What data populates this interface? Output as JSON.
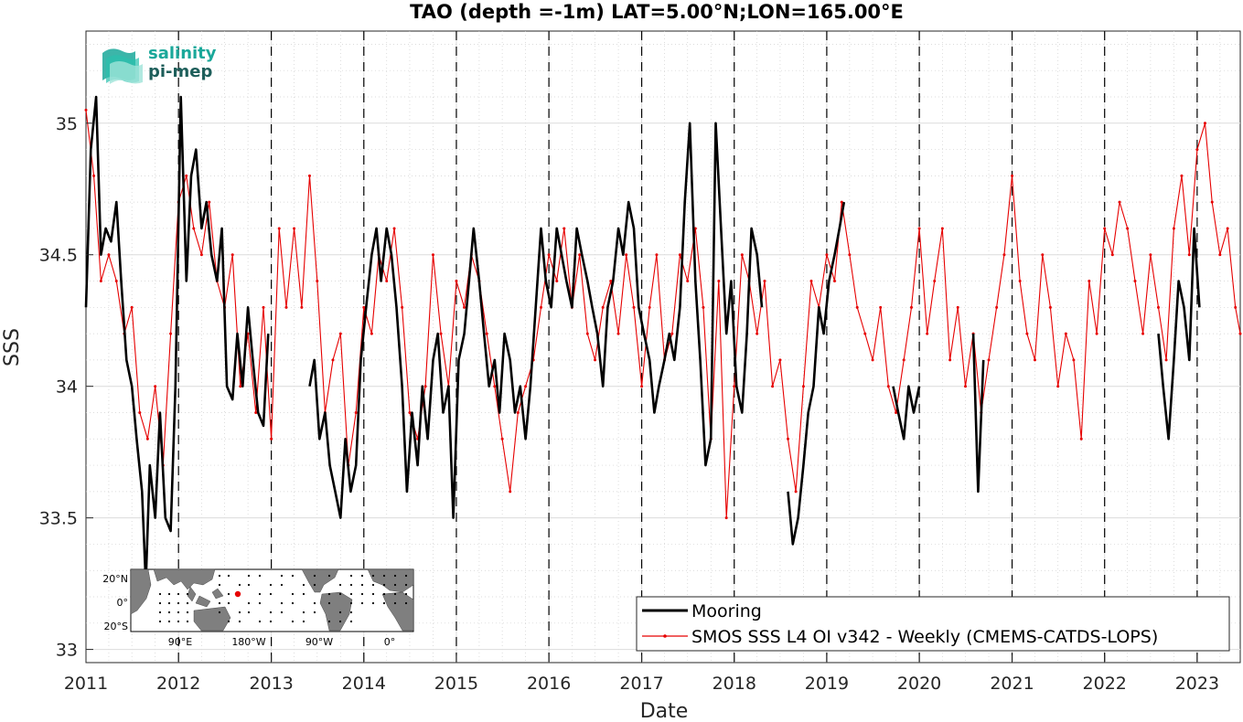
{
  "chart_data": {
    "type": "line",
    "title": "TAO (depth =-1m) LAT=5.00°N;LON=165.00°E",
    "xlabel": "Date",
    "ylabel": "SSS",
    "xlim": [
      "2011-01-01",
      "2023-06-20"
    ],
    "ylim": [
      32.95,
      35.35
    ],
    "x_ticks": [
      "2011",
      "2012",
      "2013",
      "2014",
      "2015",
      "2016",
      "2017",
      "2018",
      "2019",
      "2020",
      "2021",
      "2022",
      "2023"
    ],
    "y_ticks": [
      33,
      33.5,
      34,
      34.5,
      35
    ],
    "grid": true,
    "minor_grid": true,
    "year_dashed_lines": true,
    "legend_position": "bottom-right",
    "series": [
      {
        "name": "Mooring",
        "color": "#000000",
        "style": "thick-line",
        "segments": [
          {
            "x": [
              "2011-01-01",
              "2011-01-20",
              "2011-02-10",
              "2011-03-01",
              "2011-03-20",
              "2011-04-10",
              "2011-05-01",
              "2011-05-20",
              "2011-06-10",
              "2011-07-01",
              "2011-07-20",
              "2011-08-10",
              "2011-08-25",
              "2011-09-10",
              "2011-10-01",
              "2011-10-20",
              "2011-11-10",
              "2011-12-01",
              "2011-12-20",
              "2012-01-10",
              "2012-02-01",
              "2012-02-20",
              "2012-03-10",
              "2012-04-01",
              "2012-04-20",
              "2012-05-10",
              "2012-06-01",
              "2012-06-20",
              "2012-07-10",
              "2012-08-01",
              "2012-08-20",
              "2012-09-10",
              "2012-10-01",
              "2012-10-20",
              "2012-11-10",
              "2012-12-01",
              "2012-12-20"
            ],
            "y": [
              34.3,
              34.9,
              35.1,
              34.5,
              34.6,
              34.55,
              34.7,
              34.4,
              34.1,
              34.0,
              33.8,
              33.6,
              33.25,
              33.7,
              33.5,
              33.9,
              33.5,
              33.45,
              34.0,
              35.1,
              34.4,
              34.8,
              34.9,
              34.6,
              34.7,
              34.5,
              34.4,
              34.6,
              34.0,
              33.95,
              34.2,
              34.0,
              34.3,
              34.1,
              33.9,
              33.85,
              34.2
            ]
          },
          {
            "x": [
              "2013-06-01",
              "2013-06-20",
              "2013-07-10",
              "2013-08-01",
              "2013-08-20",
              "2013-09-10",
              "2013-10-01",
              "2013-10-20",
              "2013-11-10",
              "2013-12-01",
              "2013-12-20",
              "2014-01-10",
              "2014-02-01",
              "2014-02-20",
              "2014-03-10",
              "2014-04-01",
              "2014-04-20",
              "2014-05-10",
              "2014-06-01",
              "2014-06-20",
              "2014-07-10",
              "2014-08-01",
              "2014-08-20",
              "2014-09-10",
              "2014-10-01",
              "2014-10-20",
              "2014-11-10",
              "2014-12-01",
              "2014-12-20",
              "2015-01-10",
              "2015-02-01",
              "2015-02-20",
              "2015-03-10",
              "2015-04-01",
              "2015-04-20",
              "2015-05-10",
              "2015-06-01",
              "2015-06-20",
              "2015-07-10",
              "2015-08-01",
              "2015-08-20",
              "2015-09-10",
              "2015-10-01",
              "2015-10-20",
              "2015-11-10",
              "2015-12-01",
              "2015-12-20",
              "2016-01-10",
              "2016-02-01",
              "2016-02-20",
              "2016-03-10",
              "2016-04-01",
              "2016-04-20",
              "2016-05-10",
              "2016-06-01",
              "2016-06-20",
              "2016-07-10",
              "2016-08-01",
              "2016-08-20",
              "2016-09-10",
              "2016-10-01",
              "2016-10-20",
              "2016-11-10",
              "2016-12-01",
              "2016-12-20",
              "2017-01-10",
              "2017-02-01",
              "2017-02-20",
              "2017-03-10",
              "2017-04-01",
              "2017-04-20",
              "2017-05-10",
              "2017-06-01",
              "2017-06-20",
              "2017-07-10",
              "2017-08-01",
              "2017-08-20",
              "2017-09-10",
              "2017-10-01",
              "2017-10-20",
              "2017-11-10",
              "2017-12-01",
              "2017-12-20",
              "2018-01-10",
              "2018-02-01",
              "2018-02-20",
              "2018-03-10",
              "2018-04-01",
              "2018-04-20"
            ],
            "y": [
              34.0,
              34.1,
              33.8,
              33.9,
              33.7,
              33.6,
              33.5,
              33.8,
              33.6,
              33.7,
              34.1,
              34.3,
              34.5,
              34.6,
              34.4,
              34.6,
              34.5,
              34.3,
              34.0,
              33.6,
              33.9,
              33.7,
              34.0,
              33.8,
              34.1,
              34.2,
              33.9,
              34.0,
              33.5,
              34.1,
              34.2,
              34.4,
              34.6,
              34.4,
              34.2,
              34.0,
              34.1,
              33.9,
              34.2,
              34.1,
              33.9,
              34.0,
              33.8,
              34.0,
              34.3,
              34.6,
              34.4,
              34.3,
              34.6,
              34.5,
              34.4,
              34.3,
              34.6,
              34.5,
              34.4,
              34.3,
              34.2,
              34.0,
              34.3,
              34.4,
              34.6,
              34.5,
              34.7,
              34.6,
              34.3,
              34.2,
              34.1,
              33.9,
              34.0,
              34.1,
              34.2,
              34.1,
              34.3,
              34.7,
              35.0,
              34.4,
              34.1,
              33.7,
              33.8,
              35.0,
              34.6,
              34.2,
              34.4,
              34.0,
              33.9,
              34.2,
              34.6,
              34.5,
              34.3
            ]
          },
          {
            "x": [
              "2018-08-01",
              "2018-08-20",
              "2018-09-10",
              "2018-10-01",
              "2018-10-20",
              "2018-11-10",
              "2018-12-01",
              "2018-12-20",
              "2019-01-10",
              "2019-02-01",
              "2019-02-20",
              "2019-03-10"
            ],
            "y": [
              33.6,
              33.4,
              33.5,
              33.7,
              33.9,
              34.0,
              34.3,
              34.2,
              34.4,
              34.5,
              34.6,
              34.7
            ]
          },
          {
            "x": [
              "2019-09-20",
              "2019-10-10",
              "2019-11-01",
              "2019-11-20",
              "2019-12-10",
              "2020-01-01"
            ],
            "y": [
              34.0,
              33.9,
              33.8,
              34.0,
              33.9,
              34.0
            ]
          },
          {
            "x": [
              "2020-08-01",
              "2020-08-20",
              "2020-09-10"
            ],
            "y": [
              34.2,
              33.6,
              34.1
            ]
          },
          {
            "x": [
              "2022-08-01",
              "2022-08-20",
              "2022-09-10",
              "2022-10-01",
              "2022-10-20",
              "2022-11-10",
              "2022-12-01",
              "2022-12-20",
              "2023-01-10"
            ],
            "y": [
              34.2,
              34.0,
              33.8,
              34.1,
              34.4,
              34.3,
              34.1,
              34.6,
              34.3
            ]
          }
        ]
      },
      {
        "name": "SMOS SSS L4 OI v342 - Weekly (CMEMS-CATDS-LOPS)",
        "color": "#e60000",
        "style": "line-with-dots",
        "x": [
          "2011-01-01",
          "2011-02-01",
          "2011-03-01",
          "2011-04-01",
          "2011-05-01",
          "2011-06-01",
          "2011-07-01",
          "2011-08-01",
          "2011-09-01",
          "2011-10-01",
          "2011-11-01",
          "2011-12-01",
          "2012-01-01",
          "2012-02-01",
          "2012-03-01",
          "2012-04-01",
          "2012-05-01",
          "2012-06-01",
          "2012-07-01",
          "2012-08-01",
          "2012-09-01",
          "2012-10-01",
          "2012-11-01",
          "2012-12-01",
          "2013-01-01",
          "2013-02-01",
          "2013-03-01",
          "2013-04-01",
          "2013-05-01",
          "2013-06-01",
          "2013-07-01",
          "2013-08-01",
          "2013-09-01",
          "2013-10-01",
          "2013-11-01",
          "2013-12-01",
          "2014-01-01",
          "2014-02-01",
          "2014-03-01",
          "2014-04-01",
          "2014-05-01",
          "2014-06-01",
          "2014-07-01",
          "2014-08-01",
          "2014-09-01",
          "2014-10-01",
          "2014-11-01",
          "2014-12-01",
          "2015-01-01",
          "2015-02-01",
          "2015-03-01",
          "2015-04-01",
          "2015-05-01",
          "2015-06-01",
          "2015-07-01",
          "2015-08-01",
          "2015-09-01",
          "2015-10-01",
          "2015-11-01",
          "2015-12-01",
          "2016-01-01",
          "2016-02-01",
          "2016-03-01",
          "2016-04-01",
          "2016-05-01",
          "2016-06-01",
          "2016-07-01",
          "2016-08-01",
          "2016-09-01",
          "2016-10-01",
          "2016-11-01",
          "2016-12-01",
          "2017-01-01",
          "2017-02-01",
          "2017-03-01",
          "2017-04-01",
          "2017-05-01",
          "2017-06-01",
          "2017-07-01",
          "2017-08-01",
          "2017-09-01",
          "2017-10-01",
          "2017-11-01",
          "2017-12-01",
          "2018-01-01",
          "2018-02-01",
          "2018-03-01",
          "2018-04-01",
          "2018-05-01",
          "2018-06-01",
          "2018-07-01",
          "2018-08-01",
          "2018-09-01",
          "2018-10-01",
          "2018-11-01",
          "2018-12-01",
          "2019-01-01",
          "2019-02-01",
          "2019-03-01",
          "2019-04-01",
          "2019-05-01",
          "2019-06-01",
          "2019-07-01",
          "2019-08-01",
          "2019-09-01",
          "2019-10-01",
          "2019-11-01",
          "2019-12-01",
          "2020-01-01",
          "2020-02-01",
          "2020-03-01",
          "2020-04-01",
          "2020-05-01",
          "2020-06-01",
          "2020-07-01",
          "2020-08-01",
          "2020-09-01",
          "2020-10-01",
          "2020-11-01",
          "2020-12-01",
          "2021-01-01",
          "2021-02-01",
          "2021-03-01",
          "2021-04-01",
          "2021-05-01",
          "2021-06-01",
          "2021-07-01",
          "2021-08-01",
          "2021-09-01",
          "2021-10-01",
          "2021-11-01",
          "2021-12-01",
          "2022-01-01",
          "2022-02-01",
          "2022-03-01",
          "2022-04-01",
          "2022-05-01",
          "2022-06-01",
          "2022-07-01",
          "2022-08-01",
          "2022-09-01",
          "2022-10-01",
          "2022-11-01",
          "2022-12-01",
          "2023-01-01",
          "2023-02-01",
          "2023-03-01",
          "2023-04-01",
          "2023-05-01",
          "2023-06-01",
          "2023-06-20"
        ],
        "y": [
          35.05,
          34.8,
          34.4,
          34.5,
          34.4,
          34.2,
          34.3,
          33.9,
          33.8,
          34.0,
          33.7,
          34.2,
          34.7,
          34.8,
          34.6,
          34.5,
          34.7,
          34.4,
          34.3,
          34.5,
          34.0,
          34.2,
          33.9,
          34.3,
          33.8,
          34.6,
          34.3,
          34.6,
          34.3,
          34.8,
          34.4,
          33.9,
          34.1,
          34.2,
          33.7,
          33.9,
          34.3,
          34.2,
          34.5,
          34.4,
          34.6,
          34.3,
          33.9,
          33.8,
          34.0,
          34.5,
          34.2,
          34.0,
          34.4,
          34.3,
          34.5,
          34.4,
          34.2,
          34.0,
          33.8,
          33.6,
          33.9,
          34.0,
          34.1,
          34.3,
          34.5,
          34.4,
          34.6,
          34.3,
          34.5,
          34.2,
          34.1,
          34.3,
          34.4,
          34.2,
          34.5,
          34.3,
          34.0,
          34.3,
          34.5,
          34.1,
          34.2,
          34.5,
          34.4,
          34.6,
          34.3,
          33.8,
          34.4,
          33.5,
          34.0,
          34.5,
          34.4,
          34.2,
          34.4,
          34.0,
          34.1,
          33.8,
          33.6,
          34.0,
          34.4,
          34.3,
          34.5,
          34.4,
          34.7,
          34.5,
          34.3,
          34.2,
          34.1,
          34.3,
          34.0,
          33.9,
          34.1,
          34.3,
          34.6,
          34.2,
          34.4,
          34.6,
          34.1,
          34.3,
          34.0,
          34.2,
          33.9,
          34.1,
          34.3,
          34.5,
          34.8,
          34.4,
          34.2,
          34.1,
          34.5,
          34.3,
          34.0,
          34.2,
          34.1,
          33.8,
          34.4,
          34.2,
          34.6,
          34.5,
          34.7,
          34.6,
          34.4,
          34.2,
          34.5,
          34.3,
          34.1,
          34.6,
          34.8,
          34.5,
          34.9,
          35.0,
          34.7,
          34.5,
          34.6,
          34.3,
          34.2
        ]
      }
    ]
  },
  "inset_map": {
    "lat_ticks": [
      "20°N",
      "0°",
      "20°S"
    ],
    "lon_ticks": [
      "90°E",
      "180°W",
      "90°W",
      "0°"
    ]
  },
  "logo": {
    "line1": "salinity",
    "line2": "pi-mep"
  },
  "colors": {
    "mooring": "#000000",
    "smos": "#e60000",
    "logo_teal": "#1aa89a",
    "logo_dark": "#1d5e5a"
  }
}
